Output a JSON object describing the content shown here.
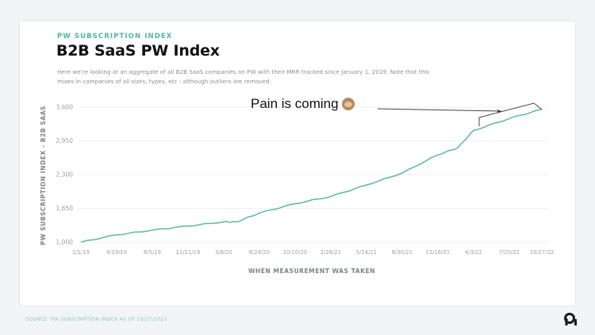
{
  "header": {
    "eyebrow": "PW SUBSCRIPTION INDEX",
    "title": "B2B SaaS PW Index",
    "subtitle": "Here we’re looking at an aggregate of all B2B SaaS companies on PW with their MRR tracked since January 1, 2019. Note that this mixes in companies of all sizes, types, etc - although outliers are removed."
  },
  "annotation": {
    "text": "Pain is coming",
    "emoji_icon": "see-no-evil-monkey-icon"
  },
  "footer": {
    "source": "SOURCE: PW SUBSCRIPTION INDEX AS OF 10/27/2022",
    "logo": "pw-logo-icon"
  },
  "colors": {
    "accent": "#4fb89a",
    "line": "#5fb8a0",
    "annotation_stroke": "#444444"
  },
  "chart_data": {
    "type": "line",
    "title": "B2B SaaS PW Index",
    "subtitle": "Here we’re looking at an aggregate of all B2B SaaS companies on PW with their MRR tracked since January 1, 2019. Note that this mixes in companies of all sizes, types, etc - although outliers are removed.",
    "xlabel": "WHEN MEASUREMENT WAS TAKEN",
    "ylabel": "PW SUBSCRIPTION INDEX - B2B SAAS",
    "ylim": [
      1000,
      3600
    ],
    "yticks": [
      "1,000",
      "1,650",
      "2,300",
      "2,950",
      "3,600"
    ],
    "xticks": [
      "1/1/19",
      "4/19/19",
      "8/5/19",
      "11/21/19",
      "3/8/20",
      "6/24/20",
      "10/10/20",
      "1/26/21",
      "5/14/21",
      "8/30/21",
      "12/16/21",
      "4/3/22",
      "7/20/22",
      "10/27/22"
    ],
    "grid": true,
    "legend": "none",
    "series": [
      {
        "name": "PW Subscription Index - B2B SaaS",
        "x": [
          "1/1/19",
          "4/19/19",
          "8/5/19",
          "11/21/19",
          "3/8/20",
          "4/15/20",
          "6/24/20",
          "10/10/20",
          "1/26/21",
          "5/14/21",
          "8/30/21",
          "12/16/21",
          "2/15/22",
          "4/3/22",
          "7/20/22",
          "10/27/22"
        ],
        "values": [
          1000,
          1140,
          1230,
          1310,
          1390,
          1385,
          1560,
          1740,
          1880,
          2100,
          2330,
          2680,
          2820,
          3150,
          3380,
          3560
        ]
      }
    ],
    "annotations": [
      {
        "text": "Pain is coming 🙈",
        "target": "4/3/22 – 10/27/22",
        "type": "arrow-bracket"
      }
    ]
  }
}
